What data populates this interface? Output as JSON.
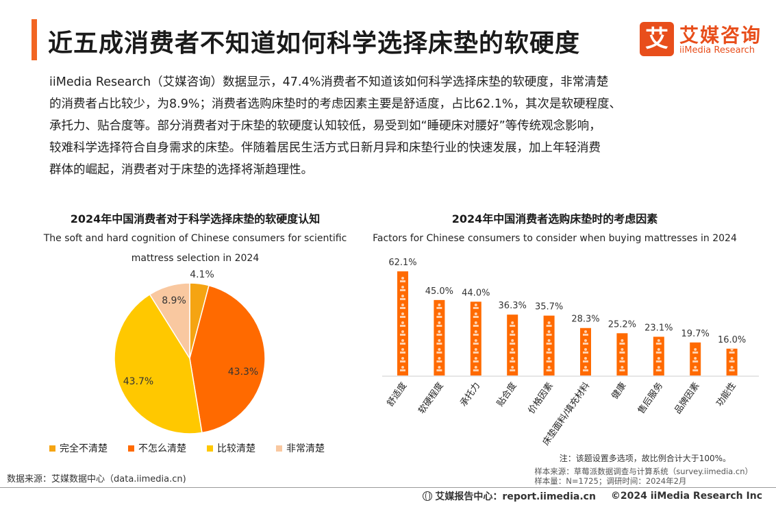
{
  "header": {
    "title": "近五成消费者不知道如何科学选择床垫的软硬度",
    "logo_cn": "艾媒咨询",
    "logo_en": "iiMedia Research",
    "logo_glyph": "艾"
  },
  "intro_lines": [
    "iiMedia Research（艾媒咨询）数据显示，47.4%消费者不知道该如何科学选择床垫的软硬度，非常清楚",
    "的消费者占比较少，为8.9%；消费者选购床垫时的考虑因素主要是舒适度，占比62.1%，其次是软硬程度、",
    "承托力、贴合度等。部分消费者对于床垫的软硬度认知较低，易受到如“睡硬床对腰好”等传统观念影响，",
    "较难科学选择符合自身需求的床垫。伴随着居民生活方式日新月异和床垫行业的快速发展，加上年轻消费",
    "群体的崛起，消费者对于床垫的选择将渐趋理性。"
  ],
  "chart_data": [
    {
      "type": "pie",
      "title": "2024年中国消费者对于科学选择床垫的软硬度认知",
      "subtitle_line1": "The soft and hard cognition of Chinese consumers for scientific",
      "subtitle_line2": "mattress selection in 2024",
      "unit": "%",
      "slices": [
        {
          "label": "完全不清楚",
          "value": 4.1,
          "display": "4.1%",
          "color": "#f5a412"
        },
        {
          "label": "不怎么清楚",
          "value": 43.3,
          "display": "43.3%",
          "color": "#ff6a00"
        },
        {
          "label": "比较清楚",
          "value": 43.7,
          "display": "43.7%",
          "color": "#ffc800"
        },
        {
          "label": "非常清楚",
          "value": 8.9,
          "display": "8.9%",
          "color": "#f9c8a0"
        }
      ],
      "legend_placement": "bottom"
    },
    {
      "type": "bar",
      "title": "2024年中国消费者选购床垫时的考虑因素",
      "subtitle": "Factors for Chinese consumers to consider when buying mattresses in 2024",
      "unit": "%",
      "categories": [
        "舒适度",
        "软硬程度",
        "承托力",
        "贴合度",
        "价格因素",
        "床垫面料/填充材料",
        "健康",
        "售后服务",
        "品牌因素",
        "功能性"
      ],
      "values": [
        62.1,
        45.0,
        44.0,
        36.3,
        35.7,
        28.3,
        25.2,
        23.1,
        19.7,
        16.0
      ],
      "value_labels": [
        "62.1%",
        "45.0%",
        "44.0%",
        "36.3%",
        "35.7%",
        "28.3%",
        "25.2%",
        "23.1%",
        "19.7%",
        "16.0%"
      ],
      "bar_color": "#ff6a00",
      "grid": false
    }
  ],
  "notes": {
    "multi_select": "注：该题设置多选项，故比例合计大于100%。",
    "sample_source": "样本来源：草莓派数据调查与计算系统（survey.iimedia.cn）",
    "sample_size": "样本量：N=1725；调研时间：2024年2月",
    "data_source": "数据来源：艾媒数据中心（data.iimedia.cn)"
  },
  "footer": {
    "report_center": "艾媒报告中心：report.iimedia.cn",
    "copyright": "©2024  iiMedia Research  Inc"
  }
}
